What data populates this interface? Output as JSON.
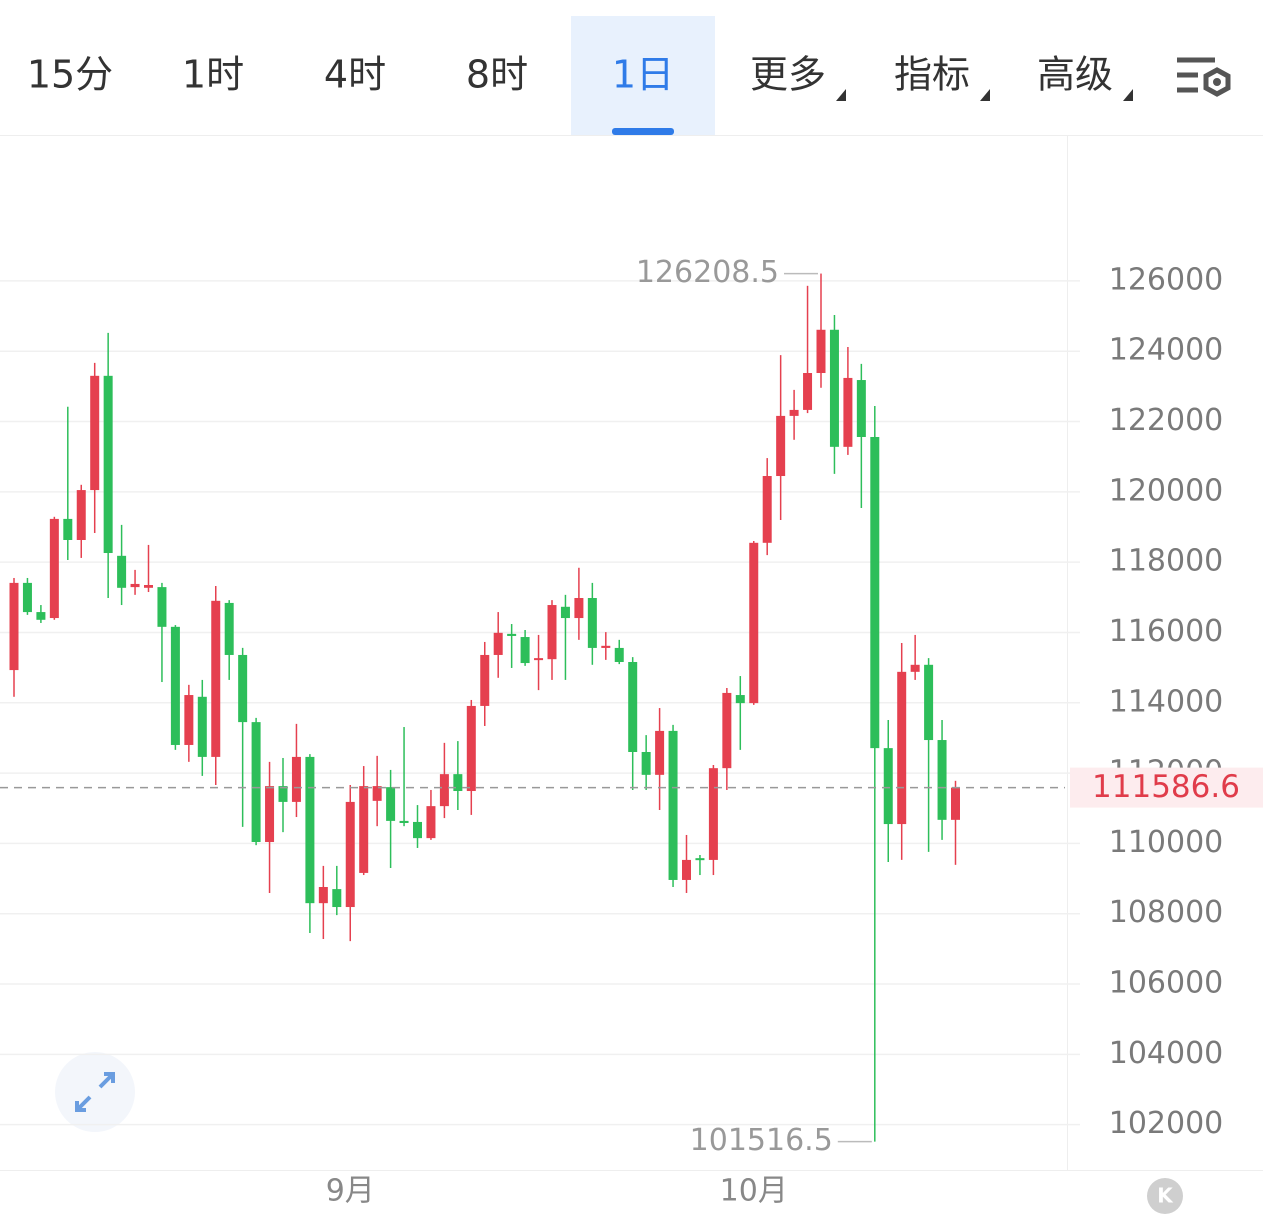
{
  "tabs": [
    {
      "label": "15分"
    },
    {
      "label": "1时"
    },
    {
      "label": "4时"
    },
    {
      "label": "8时"
    },
    {
      "label": "1日",
      "active": true
    },
    {
      "label": "更多",
      "dropdown": true
    },
    {
      "label": "指标",
      "dropdown": true
    },
    {
      "label": "高级",
      "dropdown": true
    }
  ],
  "badge": "K",
  "chart_data": {
    "type": "candlestick",
    "up_color": "#e5404f",
    "down_color": "#2dbe5a",
    "grid": true,
    "categories": [
      null,
      null,
      null,
      null,
      null,
      null,
      null,
      null,
      null,
      null,
      null,
      null,
      null,
      null,
      null,
      null,
      null,
      null,
      null,
      null,
      null,
      null,
      null,
      null,
      null,
      "9月",
      null,
      null,
      null,
      null,
      null,
      null,
      null,
      null,
      null,
      null,
      null,
      null,
      null,
      null,
      null,
      null,
      null,
      null,
      null,
      null,
      null,
      null,
      null,
      null,
      null,
      null,
      null,
      null,
      null,
      "10月",
      null,
      null,
      null,
      null,
      null,
      null,
      null,
      null,
      null,
      null,
      null,
      null,
      null,
      null,
      null
    ],
    "open": [
      114930,
      117410,
      116580,
      116410,
      119230,
      118630,
      120050,
      123300,
      118180,
      117290,
      117270,
      117290,
      116160,
      112800,
      114170,
      112460,
      116840,
      115360,
      113450,
      110040,
      111630,
      111180,
      112460,
      108300,
      108700,
      108190,
      109160,
      111210,
      111600,
      110640,
      110610,
      110150,
      111060,
      111970,
      111490,
      113910,
      115360,
      115960,
      115870,
      115220,
      115240,
      116730,
      116410,
      116980,
      115560,
      115560,
      115160,
      112600,
      111950,
      113200,
      108960,
      109580,
      109530,
      112140,
      114220,
      113990,
      118550,
      120450,
      122160,
      122330,
      123380,
      124610,
      121280,
      123180,
      121560,
      112710,
      110550,
      114880,
      115080,
      112940,
      110670
    ],
    "high": [
      117550,
      117550,
      116780,
      119290,
      122420,
      120200,
      123670,
      124520,
      119060,
      117780,
      118490,
      117410,
      116210,
      114510,
      114650,
      117320,
      116920,
      115560,
      113570,
      112320,
      112430,
      113400,
      112540,
      109360,
      109360,
      111660,
      112200,
      112490,
      112090,
      113310,
      111090,
      111520,
      112860,
      112910,
      114080,
      115730,
      116580,
      116240,
      116070,
      115930,
      116920,
      117070,
      117840,
      117410,
      116010,
      115790,
      115300,
      113080,
      113850,
      113370,
      110240,
      109670,
      112230,
      114420,
      114760,
      118600,
      120960,
      123890,
      122900,
      125860,
      126208.5,
      125030,
      124120,
      123640,
      122440,
      113510,
      115700,
      115930,
      115270,
      113510,
      111780
    ],
    "low": [
      114170,
      116500,
      116270,
      116360,
      118060,
      118120,
      118830,
      116980,
      116780,
      117070,
      117150,
      114590,
      112660,
      112320,
      111920,
      111660,
      114650,
      110470,
      109950,
      108590,
      110320,
      110750,
      107450,
      107280,
      107960,
      107220,
      109100,
      110490,
      109300,
      110490,
      109870,
      110100,
      110720,
      110950,
      110810,
      113340,
      114710,
      114990,
      115050,
      114360,
      114650,
      114650,
      115790,
      115080,
      115220,
      115100,
      111520,
      111520,
      110950,
      108760,
      108590,
      109100,
      109100,
      111520,
      112660,
      113940,
      118200,
      119200,
      121480,
      122240,
      122960,
      120510,
      121050,
      119540,
      101516.5,
      109470,
      109530,
      114650,
      109760,
      110100,
      109390
    ],
    "close": [
      117410,
      116580,
      116360,
      119230,
      118630,
      120050,
      123300,
      118260,
      117270,
      117380,
      117350,
      116160,
      112800,
      114220,
      112460,
      116900,
      115360,
      113450,
      110040,
      111630,
      111180,
      112460,
      108300,
      108760,
      108190,
      111180,
      111630,
      111630,
      110640,
      110580,
      110150,
      111060,
      111970,
      111490,
      113910,
      115360,
      115990,
      115900,
      115130,
      115270,
      116780,
      116410,
      116980,
      115560,
      115620,
      115160,
      112600,
      111950,
      113200,
      108960,
      109530,
      109530,
      112140,
      114280,
      113990,
      118550,
      120450,
      122160,
      122330,
      123380,
      124610,
      121280,
      123240,
      121560,
      112710,
      110550,
      114880,
      115080,
      112940,
      110670,
      111586.6
    ],
    "ylim": [
      100710,
      130150
    ],
    "yticks": [
      102000,
      104000,
      106000,
      108000,
      110000,
      112000,
      114000,
      116000,
      118000,
      120000,
      122000,
      124000,
      126000
    ]
  }
}
